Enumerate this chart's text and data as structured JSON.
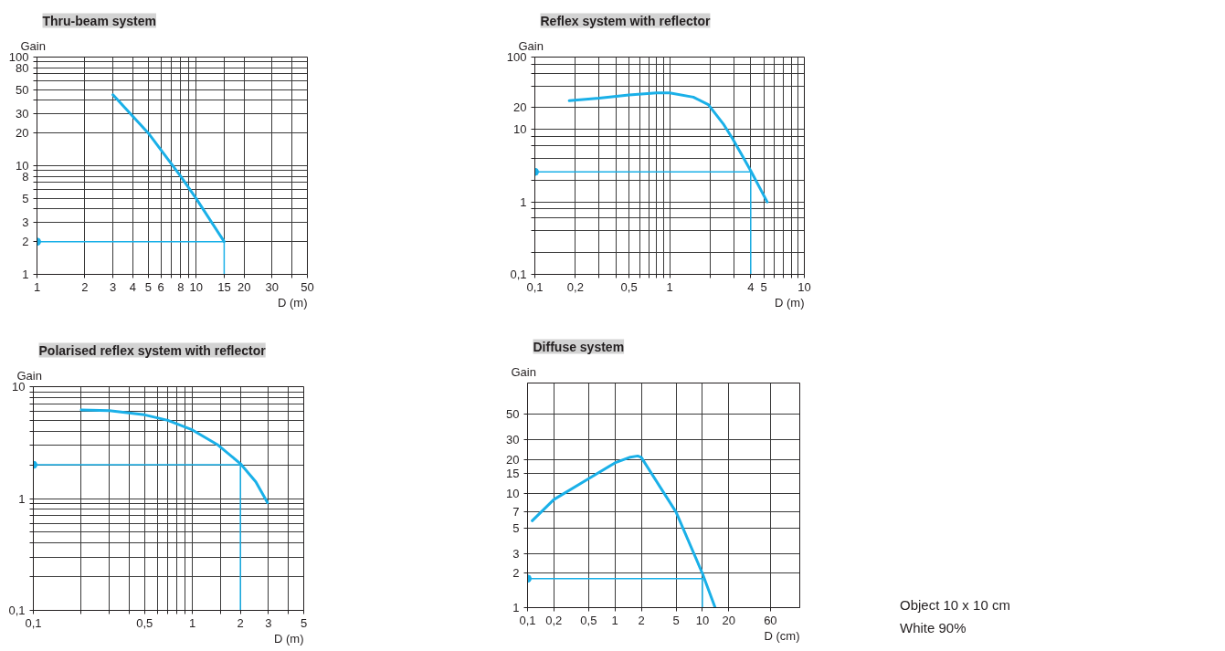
{
  "chart_data": [
    {
      "type": "line",
      "title": "Thru-beam system",
      "xlabel": "D (m)",
      "ylabel": "Gain",
      "log": "xy",
      "xlim": [
        1,
        50
      ],
      "ylim": [
        1,
        100
      ],
      "grid": true,
      "xticks": [
        1,
        2,
        3,
        4,
        5,
        6,
        {
          "value": 7,
          "label": null
        },
        8,
        {
          "value": 9,
          "label": null
        },
        10,
        15,
        20,
        30,
        {
          "value": 40,
          "label": null
        },
        50
      ],
      "yticks": [
        1,
        2,
        3,
        {
          "value": 4,
          "label": null
        },
        5,
        {
          "value": 6,
          "label": null
        },
        {
          "value": 7,
          "label": null
        },
        8,
        {
          "value": 9,
          "label": null
        },
        10,
        20,
        30,
        {
          "value": 40,
          "label": null
        },
        50,
        {
          "value": 60,
          "label": null
        },
        {
          "value": 70,
          "label": null
        },
        80,
        {
          "value": 90,
          "label": null
        },
        100
      ],
      "series": [
        {
          "color": "#1ab0e8",
          "x": [
            3,
            5,
            8,
            10,
            15
          ],
          "values": [
            45,
            20,
            8,
            5,
            2
          ]
        },
        {
          "color": "#1ab0e8",
          "x": [
            1,
            15,
            15
          ],
          "values": [
            2,
            2,
            1
          ]
        },
        {
          "type": "scatter",
          "marker": "circle",
          "color": "#1ab0e8",
          "x": [
            1
          ],
          "values": [
            2
          ]
        }
      ]
    },
    {
      "type": "line",
      "title": "Reflex system with reflector",
      "xlabel": "D (m)",
      "ylabel": "Gain",
      "log": "xy",
      "xlim": [
        0.1,
        10
      ],
      "ylim": [
        0.1,
        100
      ],
      "grid": true,
      "xticks": [
        {
          "value": 0.1,
          "label": "0,1"
        },
        {
          "value": 0.2,
          "label": "0,2"
        },
        {
          "value": 0.3,
          "label": null
        },
        {
          "value": 0.4,
          "label": null
        },
        {
          "value": 0.5,
          "label": "0,5"
        },
        {
          "value": 0.6,
          "label": null
        },
        {
          "value": 0.7,
          "label": null
        },
        {
          "value": 0.8,
          "label": null
        },
        {
          "value": 0.9,
          "label": null
        },
        1,
        {
          "value": 2,
          "label": null
        },
        {
          "value": 3,
          "label": null
        },
        4,
        5,
        {
          "value": 6,
          "label": null
        },
        {
          "value": 7,
          "label": null
        },
        {
          "value": 8,
          "label": null
        },
        {
          "value": 9,
          "label": null
        },
        10
      ],
      "yticks": [
        {
          "value": 0.1,
          "label": "0,1"
        },
        {
          "value": 0.2,
          "label": null
        },
        {
          "value": 0.4,
          "label": null
        },
        {
          "value": 0.6,
          "label": null
        },
        {
          "value": 0.8,
          "label": null
        },
        1,
        {
          "value": 2,
          "label": null
        },
        {
          "value": 4,
          "label": null
        },
        {
          "value": 6,
          "label": null
        },
        {
          "value": 8,
          "label": null
        },
        10,
        20,
        {
          "value": 40,
          "label": null
        },
        {
          "value": 60,
          "label": null
        },
        {
          "value": 80,
          "label": null
        },
        100
      ],
      "series": [
        {
          "color": "#1ab0e8",
          "x": [
            0.18,
            0.3,
            0.5,
            0.8,
            1,
            1.5,
            1.94,
            2.5,
            2.93,
            3.5,
            4,
            5.3
          ],
          "values": [
            25,
            27,
            30,
            32,
            32,
            28,
            22,
            12,
            7.5,
            4.2,
            2.7,
            1
          ]
        },
        {
          "color": "#1ab0e8",
          "x": [
            0.1,
            4,
            4
          ],
          "values": [
            2.6,
            2.6,
            0.1
          ]
        },
        {
          "type": "scatter",
          "marker": "circle",
          "color": "#1ab0e8",
          "x": [
            0.1
          ],
          "values": [
            2.6
          ]
        }
      ]
    },
    {
      "type": "line",
      "title": "Polarised reflex system with reflector",
      "xlabel": "D (m)",
      "ylabel": "Gain",
      "log": "xy",
      "xlim": [
        0.1,
        5
      ],
      "ylim": [
        0.1,
        10
      ],
      "grid": true,
      "xticks": [
        {
          "value": 0.1,
          "label": "0,1"
        },
        {
          "value": 0.2,
          "label": null
        },
        {
          "value": 0.3,
          "label": null
        },
        {
          "value": 0.4,
          "label": null
        },
        {
          "value": 0.5,
          "label": "0,5"
        },
        {
          "value": 0.6,
          "label": null
        },
        {
          "value": 0.7,
          "label": null
        },
        {
          "value": 0.8,
          "label": null
        },
        {
          "value": 0.9,
          "label": null
        },
        1,
        {
          "value": 1.5,
          "label": null
        },
        2,
        3,
        {
          "value": 4,
          "label": null
        },
        5
      ],
      "yticks": [
        {
          "value": 0.1,
          "label": "0,1"
        },
        {
          "value": 0.2,
          "label": null
        },
        {
          "value": 0.3,
          "label": null
        },
        {
          "value": 0.4,
          "label": null
        },
        {
          "value": 0.5,
          "label": null
        },
        {
          "value": 0.6,
          "label": null
        },
        {
          "value": 0.7,
          "label": null
        },
        {
          "value": 0.8,
          "label": null
        },
        {
          "value": 0.9,
          "label": null
        },
        1,
        {
          "value": 2,
          "label": null
        },
        {
          "value": 3,
          "label": null
        },
        {
          "value": 4,
          "label": null
        },
        {
          "value": 5,
          "label": null
        },
        {
          "value": 6,
          "label": null
        },
        {
          "value": 7,
          "label": null
        },
        {
          "value": 8,
          "label": null
        },
        {
          "value": 9,
          "label": null
        },
        10
      ],
      "series": [
        {
          "color": "#1ab0e8",
          "x": [
            0.2,
            0.3,
            0.5,
            0.7,
            1,
            1.45,
            2,
            2.5,
            2.96
          ],
          "values": [
            6.2,
            6.1,
            5.6,
            5,
            4.1,
            3,
            2.05,
            1.41,
            0.92
          ]
        },
        {
          "color": "#1ab0e8",
          "x": [
            0.1,
            2,
            2
          ],
          "values": [
            2,
            2,
            0.1
          ]
        },
        {
          "type": "scatter",
          "marker": "circle",
          "color": "#1ab0e8",
          "x": [
            0.1
          ],
          "values": [
            2
          ]
        }
      ]
    },
    {
      "type": "line",
      "title": "Diffuse system",
      "xlabel": "D (cm)",
      "ylabel": "Gain",
      "log": "xy",
      "xlim": [
        0.1,
        130
      ],
      "ylim": [
        1,
        94
      ],
      "grid": true,
      "xticks": [
        {
          "value": 0.1,
          "label": "0,1"
        },
        {
          "value": 0.2,
          "label": "0,2"
        },
        {
          "value": 0.5,
          "label": "0,5"
        },
        1,
        2,
        5,
        10,
        20,
        60
      ],
      "yticks": [
        1,
        2,
        3,
        5,
        7,
        10,
        15,
        20,
        30,
        50
      ],
      "annotations": [
        "Object 10 x 10 cm",
        "White 90%"
      ],
      "series": [
        {
          "color": "#1ab0e8",
          "x": [
            0.113,
            0.2,
            0.5,
            1,
            1.5,
            1.82,
            2,
            5,
            10,
            14
          ],
          "values": [
            5.8,
            8.9,
            13.6,
            18.7,
            21,
            21.5,
            20.9,
            6.9,
            2,
            1
          ]
        },
        {
          "color": "#1ab0e8",
          "x": [
            0.1,
            10,
            10
          ],
          "values": [
            1.8,
            1.8,
            1
          ]
        },
        {
          "type": "scatter",
          "marker": "circle",
          "color": "#1ab0e8",
          "x": [
            0.1
          ],
          "values": [
            1.8
          ]
        }
      ]
    }
  ]
}
